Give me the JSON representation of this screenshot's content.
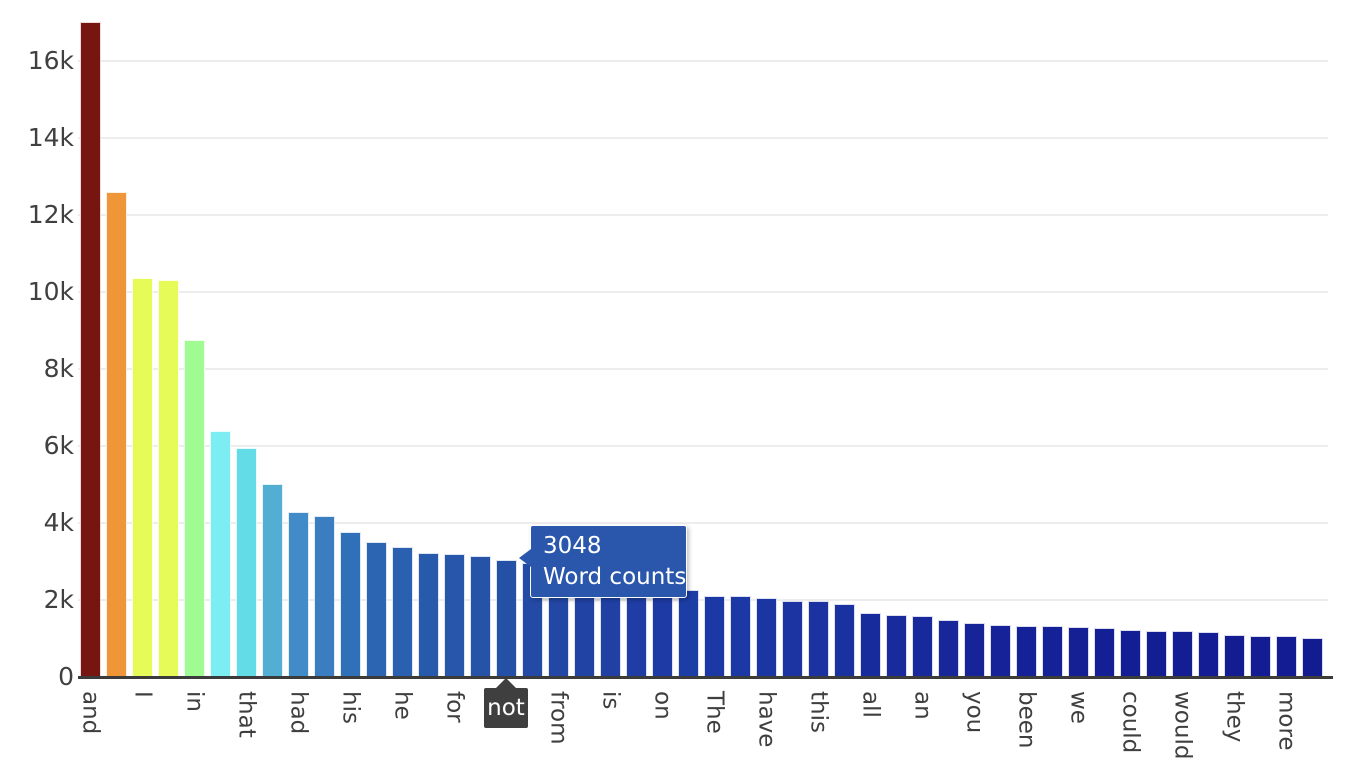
{
  "chart_data": {
    "type": "bar",
    "title": "",
    "series_name": "Word counts",
    "grid": true,
    "legend": false,
    "y_ticks": [
      "0",
      "2k",
      "4k",
      "6k",
      "8k",
      "10k",
      "12k",
      "14k",
      "16k"
    ],
    "y_tick_interval": 2000,
    "y_max_visible": 17600,
    "note": "x-axis labels shown only for every other bar; unlabeled bars have empty label",
    "bars": [
      {
        "label": "and",
        "value": 17000,
        "color": "#771510"
      },
      {
        "label": "",
        "value": 12600,
        "color": "#EF9638"
      },
      {
        "label": "I",
        "value": 10370,
        "color": "#E6FB57"
      },
      {
        "label": "",
        "value": 10310,
        "color": "#E6FB57"
      },
      {
        "label": "in",
        "value": 8750,
        "color": "#A0FB92"
      },
      {
        "label": "",
        "value": 6390,
        "color": "#7BEDF3"
      },
      {
        "label": "that",
        "value": 5950,
        "color": "#63DCE7"
      },
      {
        "label": "",
        "value": 5010,
        "color": "#52AED3"
      },
      {
        "label": "had",
        "value": 4290,
        "color": "#418BC9"
      },
      {
        "label": "",
        "value": 4180,
        "color": "#3A7DC0"
      },
      {
        "label": "his",
        "value": 3770,
        "color": "#3070B9"
      },
      {
        "label": "",
        "value": 3510,
        "color": "#2C66B3"
      },
      {
        "label": "he",
        "value": 3380,
        "color": "#2A60AF"
      },
      {
        "label": "",
        "value": 3220,
        "color": "#285AAC"
      },
      {
        "label": "for",
        "value": 3190,
        "color": "#2756AA"
      },
      {
        "label": "",
        "value": 3140,
        "color": "#2653A8"
      },
      {
        "label": "not",
        "value": 3048,
        "color": "#2450A5"
      },
      {
        "label": "",
        "value": 2950,
        "color": "#234BA5"
      },
      {
        "label": "from",
        "value": 2850,
        "color": "#2247A4"
      },
      {
        "label": "",
        "value": 2740,
        "color": "#2143A4"
      },
      {
        "label": "is",
        "value": 2620,
        "color": "#2040A4"
      },
      {
        "label": "",
        "value": 2500,
        "color": "#1F3DA5"
      },
      {
        "label": "on",
        "value": 2390,
        "color": "#1E3BA5"
      },
      {
        "label": "",
        "value": 2270,
        "color": "#1D3DA6"
      },
      {
        "label": "The",
        "value": 2100,
        "color": "#1C38A4"
      },
      {
        "label": "",
        "value": 2100,
        "color": "#1C38A4"
      },
      {
        "label": "have",
        "value": 2050,
        "color": "#1B36A3"
      },
      {
        "label": "",
        "value": 1980,
        "color": "#1B34A2"
      },
      {
        "label": "this",
        "value": 1970,
        "color": "#1A33A1"
      },
      {
        "label": "",
        "value": 1900,
        "color": "#1A31A0"
      },
      {
        "label": "all",
        "value": 1660,
        "color": "#182B9D"
      },
      {
        "label": "",
        "value": 1620,
        "color": "#182A9C"
      },
      {
        "label": "an",
        "value": 1590,
        "color": "#17299B"
      },
      {
        "label": "",
        "value": 1480,
        "color": "#172799"
      },
      {
        "label": "you",
        "value": 1400,
        "color": "#162498"
      },
      {
        "label": "",
        "value": 1350,
        "color": "#162297"
      },
      {
        "label": "been",
        "value": 1330,
        "color": "#152196"
      },
      {
        "label": "",
        "value": 1330,
        "color": "#152196"
      },
      {
        "label": "we",
        "value": 1300,
        "color": "#152095"
      },
      {
        "label": "",
        "value": 1270,
        "color": "#151F95"
      },
      {
        "label": "could",
        "value": 1230,
        "color": "#141E94"
      },
      {
        "label": "",
        "value": 1200,
        "color": "#141E93"
      },
      {
        "label": "would",
        "value": 1200,
        "color": "#141E93"
      },
      {
        "label": "",
        "value": 1160,
        "color": "#141D93"
      },
      {
        "label": "they",
        "value": 1090,
        "color": "#141C92"
      },
      {
        "label": "",
        "value": 1070,
        "color": "#131C92"
      },
      {
        "label": "more",
        "value": 1070,
        "color": "#131C92"
      },
      {
        "label": "",
        "value": 1010,
        "color": "#131B91"
      }
    ]
  },
  "tooltip": {
    "value": "3048",
    "series": "Word counts",
    "bg_color": "#2a56ac",
    "text_color": "#ffffff"
  },
  "highlight": {
    "label": "not",
    "bg_color": "#3f3f3f",
    "text_color": "#ffffff"
  },
  "style_colors": {
    "grid": "#ededed",
    "axis_line": "#3b3b3b",
    "tick_text": "#404040"
  }
}
